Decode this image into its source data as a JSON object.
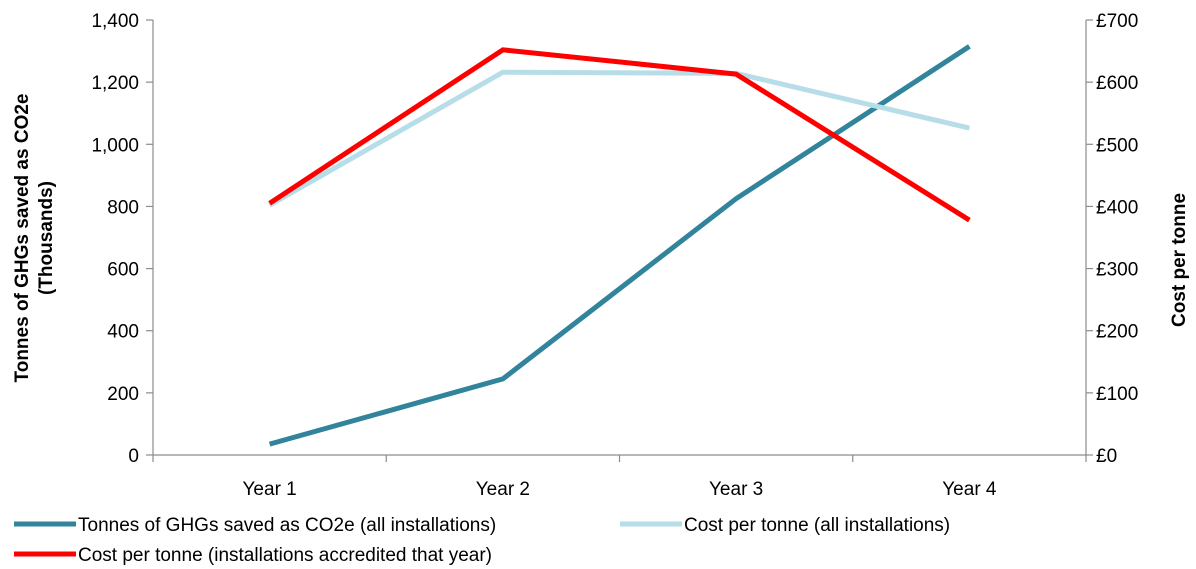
{
  "chart_data": {
    "type": "line",
    "categories": [
      "Year 1",
      "Year 2",
      "Year 3",
      "Year 4"
    ],
    "y_left": {
      "label_lines": [
        "Tonnes of GHGs saved as CO2e",
        "(Thousands)"
      ],
      "range": [
        0,
        1400
      ],
      "ticks": [
        0,
        200,
        400,
        600,
        800,
        1000,
        1200,
        1400
      ],
      "tick_labels": [
        "0",
        "200",
        "400",
        "600",
        "800",
        "1,000",
        "1,200",
        "1,400"
      ]
    },
    "y_right": {
      "label": "Cost per tonne",
      "range": [
        0,
        700
      ],
      "ticks": [
        0,
        100,
        200,
        300,
        400,
        500,
        600,
        700
      ],
      "tick_labels": [
        "£0",
        "£100",
        "£200",
        "£300",
        "£400",
        "£500",
        "£600",
        "£700"
      ]
    },
    "grid": false,
    "legend_position": "bottom",
    "series": [
      {
        "name": "Tonnes of GHGs saved as CO2e (all installations)",
        "axis": "left",
        "color": "#31849b",
        "values": [
          35,
          245,
          825,
          1315
        ]
      },
      {
        "name": "Cost per tonne (all installations)",
        "axis": "right",
        "color": "#b7dde8",
        "values": [
          402,
          616,
          614,
          526
        ]
      },
      {
        "name": "Cost per tonne (installations accredited that year)",
        "axis": "right",
        "color": "#ff0000",
        "values": [
          405,
          652,
          613,
          378
        ]
      }
    ]
  }
}
